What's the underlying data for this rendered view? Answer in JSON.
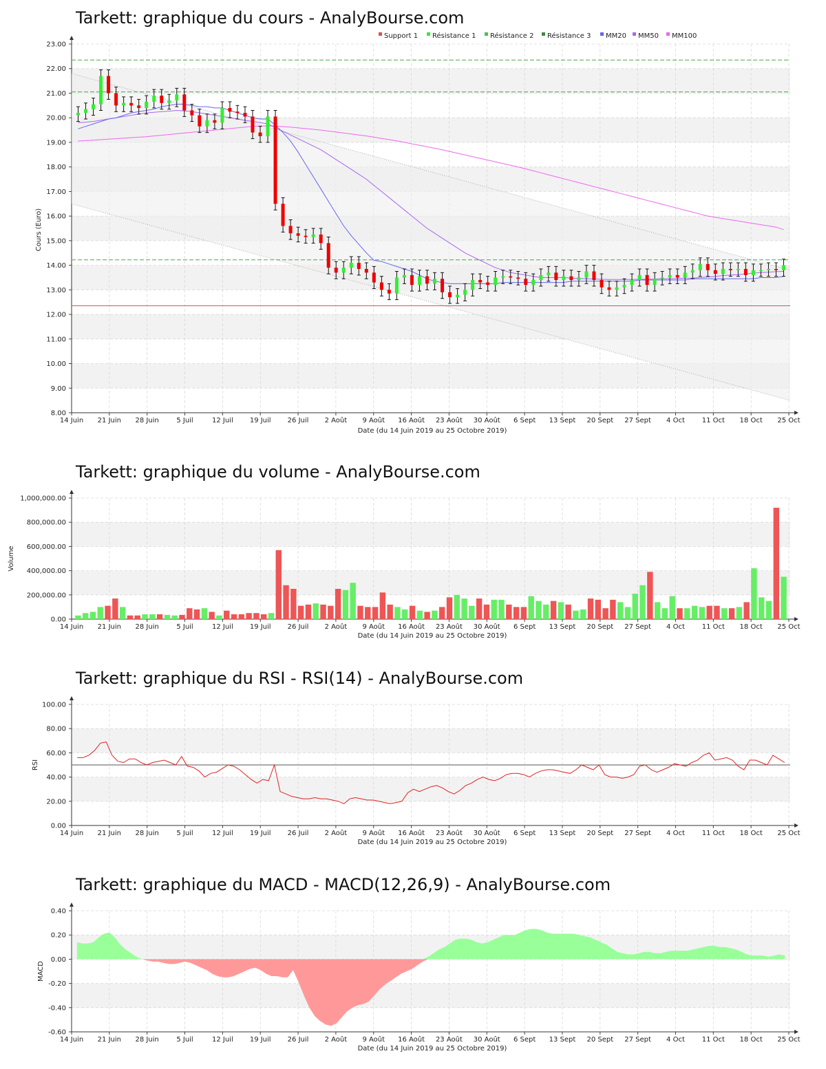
{
  "colors": {
    "up": "#33ee33",
    "down": "#ee0000",
    "wick": "#111111",
    "support": "#e05050",
    "resistance": "#44aa44",
    "mm20": "#6666ee",
    "mm50": "#aa66ee",
    "mm100": "#ee66ee",
    "band": "#f2f2f2",
    "grid": "#d8d8d8",
    "rsi": "#dd2222",
    "macd_pos": "#99ff99",
    "macd_neg": "#ff9999"
  },
  "x_ticks": [
    "14 Juin",
    "21 Juin",
    "28 Juin",
    "5 Juil",
    "12 Juil",
    "19 Juil",
    "26 Juil",
    "2 Août",
    "9 Août",
    "16 Août",
    "23 Août",
    "30 Août",
    "6 Sept",
    "13 Sept",
    "20 Sept",
    "27 Sept",
    "4 Oct",
    "11 Oct",
    "18 Oct",
    "25 Oct"
  ],
  "x_axis_label": "Date (du 14 Juin 2019 au 25 Octobre 2019)",
  "chart_data": [
    {
      "type": "candlestick",
      "title": "Tarkett: graphique du cours - AnalyBourse.com",
      "ylabel": "Cours (Euro)",
      "ylim": [
        8,
        23
      ],
      "y_ticks": [
        "8.00",
        "9.00",
        "10.00",
        "11.00",
        "12.00",
        "13.00",
        "14.00",
        "15.00",
        "16.00",
        "17.00",
        "18.00",
        "19.00",
        "20.00",
        "21.00",
        "22.00",
        "23.00"
      ],
      "legend": [
        "Support 1",
        "Résistance 1",
        "Résistance 2",
        "Résistance 3",
        "MM20",
        "MM50",
        "MM100"
      ],
      "levels": {
        "support_1": 12.35,
        "resistance_1": 14.22,
        "resistance_2": 21.05,
        "resistance_3": 22.35
      },
      "trend_channel": {
        "upper": [
          21.8,
          13.8
        ],
        "lower": [
          16.5,
          8.5
        ]
      },
      "close": [
        20.2,
        20.35,
        20.55,
        21.7,
        21.0,
        20.5,
        20.6,
        20.5,
        20.4,
        20.65,
        20.9,
        20.6,
        20.7,
        20.95,
        20.3,
        20.1,
        19.65,
        19.9,
        19.8,
        20.4,
        20.25,
        20.2,
        20.05,
        19.4,
        19.25,
        20.05,
        16.5,
        15.6,
        15.3,
        15.2,
        15.15,
        15.25,
        14.9,
        13.9,
        13.7,
        13.9,
        14.1,
        13.85,
        13.7,
        13.3,
        13.0,
        12.85,
        13.5,
        13.6,
        13.2,
        13.55,
        13.25,
        13.45,
        12.9,
        12.7,
        12.8,
        13.0,
        13.4,
        13.3,
        13.2,
        13.5,
        13.55,
        13.5,
        13.45,
        13.2,
        13.4,
        13.6,
        13.7,
        13.4,
        13.55,
        13.4,
        13.5,
        13.75,
        13.4,
        13.1,
        13.0,
        13.1,
        13.2,
        13.4,
        13.6,
        13.2,
        13.45,
        13.5,
        13.6,
        13.5,
        13.7,
        13.8,
        14.05,
        13.8,
        13.65,
        13.85,
        13.8,
        13.85,
        13.6,
        13.8,
        13.8,
        13.85,
        13.8,
        14.0
      ],
      "mm20": [
        19.55,
        19.65,
        19.75,
        19.85,
        19.95,
        20.0,
        20.1,
        20.2,
        20.25,
        20.3,
        20.35,
        20.45,
        20.5,
        20.55,
        20.55,
        20.5,
        20.45,
        20.45,
        20.4,
        20.4,
        20.3,
        20.2,
        20.1,
        20.0,
        19.95,
        19.95,
        19.7,
        19.4,
        19.05,
        18.6,
        18.1,
        17.6,
        17.1,
        16.6,
        16.1,
        15.6,
        15.2,
        14.85,
        14.5,
        14.2,
        14.15,
        14.05,
        13.95,
        13.85,
        13.75,
        13.6,
        13.45,
        13.35,
        13.3,
        13.25,
        13.25,
        13.25,
        13.25,
        13.25,
        13.25,
        13.25,
        13.3,
        13.3,
        13.3,
        13.3,
        13.3,
        13.3,
        13.3,
        13.3,
        13.3,
        13.35,
        13.35,
        13.35,
        13.35,
        13.35,
        13.35,
        13.35,
        13.35,
        13.35,
        13.4,
        13.4,
        13.4,
        13.4,
        13.4,
        13.4,
        13.4,
        13.45,
        13.45,
        13.45,
        13.45,
        13.45,
        13.45,
        13.45,
        13.45,
        13.45,
        13.5,
        13.5,
        13.5,
        13.55
      ],
      "mm50": [
        19.8,
        19.82,
        19.85,
        19.9,
        19.95,
        20.0,
        20.05,
        20.1,
        20.15,
        20.2,
        20.22,
        20.25,
        20.27,
        20.3,
        20.28,
        20.25,
        20.2,
        20.15,
        20.1,
        20.05,
        20.0,
        19.95,
        19.9,
        19.85,
        19.8,
        19.75,
        19.6,
        19.45,
        19.3,
        19.15,
        19.0,
        18.85,
        18.7,
        18.5,
        18.3,
        18.1,
        17.9,
        17.7,
        17.5,
        17.25,
        17.0,
        16.75,
        16.5,
        16.25,
        16.0,
        15.75,
        15.5,
        15.3,
        15.1,
        14.9,
        14.7,
        14.5,
        14.35,
        14.2,
        14.05,
        13.9,
        13.8,
        13.7,
        13.65,
        13.6,
        13.55,
        13.5,
        13.5,
        13.5,
        13.5,
        13.48,
        13.46,
        13.45,
        13.44,
        13.43,
        13.42,
        13.42,
        13.42,
        13.42,
        13.43,
        13.43,
        13.44,
        13.45,
        13.45,
        13.46,
        13.47,
        13.48,
        13.5,
        13.52,
        13.55,
        13.58,
        13.6,
        13.62,
        13.65,
        13.68,
        13.7,
        13.72,
        13.74,
        13.75
      ],
      "mm100": [
        19.05,
        19.07,
        19.09,
        19.11,
        19.13,
        19.15,
        19.17,
        19.19,
        19.21,
        19.23,
        19.26,
        19.29,
        19.32,
        19.35,
        19.38,
        19.41,
        19.44,
        19.47,
        19.5,
        19.53,
        19.56,
        19.59,
        19.62,
        19.65,
        19.66,
        19.67,
        19.66,
        19.64,
        19.62,
        19.59,
        19.56,
        19.53,
        19.5,
        19.46,
        19.42,
        19.38,
        19.34,
        19.3,
        19.26,
        19.21,
        19.16,
        19.11,
        19.06,
        19.0,
        18.94,
        18.88,
        18.82,
        18.76,
        18.7,
        18.63,
        18.56,
        18.49,
        18.42,
        18.35,
        18.28,
        18.21,
        18.14,
        18.07,
        18.0,
        17.92,
        17.84,
        17.76,
        17.68,
        17.6,
        17.52,
        17.44,
        17.36,
        17.28,
        17.2,
        17.12,
        17.04,
        16.96,
        16.88,
        16.8,
        16.72,
        16.64,
        16.56,
        16.48,
        16.4,
        16.32,
        16.24,
        16.16,
        16.08,
        16.0,
        15.95,
        15.9,
        15.85,
        15.8,
        15.75,
        15.7,
        15.65,
        15.6,
        15.55,
        15.45
      ]
    },
    {
      "type": "bar",
      "title": "Tarkett: graphique du volume - AnalyBourse.com",
      "ylabel": "Volume",
      "ylim": [
        0,
        1000000
      ],
      "y_ticks": [
        "0.00",
        "200,000.00",
        "400,000.00",
        "600,000.00",
        "800,000.00",
        "1,000,000.00"
      ],
      "values": [
        30000,
        50000,
        60000,
        100000,
        110000,
        170000,
        100000,
        30000,
        30000,
        40000,
        40000,
        40000,
        35000,
        30000,
        35000,
        90000,
        80000,
        90000,
        60000,
        30000,
        70000,
        40000,
        40000,
        50000,
        50000,
        40000,
        50000,
        570000,
        280000,
        250000,
        110000,
        120000,
        130000,
        120000,
        110000,
        250000,
        240000,
        300000,
        110000,
        100000,
        100000,
        220000,
        120000,
        100000,
        80000,
        110000,
        70000,
        60000,
        70000,
        100000,
        180000,
        200000,
        170000,
        110000,
        170000,
        120000,
        160000,
        160000,
        120000,
        100000,
        100000,
        190000,
        150000,
        120000,
        150000,
        140000,
        120000,
        70000,
        80000,
        170000,
        160000,
        90000,
        160000,
        140000,
        100000,
        210000,
        280000,
        390000,
        140000,
        90000,
        190000,
        90000,
        90000,
        110000,
        100000,
        110000,
        110000,
        90000,
        90000,
        100000,
        140000,
        420000,
        180000,
        150000,
        920000,
        350000
      ]
    },
    {
      "type": "line",
      "title": "Tarkett: graphique du RSI - RSI(14) - AnalyBourse.com",
      "ylabel": "RSI",
      "ylim": [
        0,
        100
      ],
      "y_ticks": [
        "0.00",
        "20.00",
        "40.00",
        "60.00",
        "80.00",
        "100.00"
      ],
      "reference": 50,
      "values": [
        56,
        56,
        58,
        62,
        68,
        69,
        58,
        53,
        52,
        55,
        55,
        52,
        50,
        52,
        53,
        54,
        52,
        50,
        57,
        49,
        48,
        45,
        40,
        43,
        44,
        47,
        50,
        49,
        46,
        42,
        38,
        35,
        38,
        37,
        50,
        28,
        26,
        24,
        23,
        22,
        22,
        23,
        22,
        22,
        21,
        20,
        18,
        22,
        23,
        22,
        21,
        21,
        20,
        19,
        18,
        19,
        20,
        27,
        30,
        28,
        30,
        32,
        33,
        31,
        28,
        26,
        29,
        33,
        35,
        38,
        40,
        38,
        37,
        39,
        42,
        43,
        43,
        42,
        40,
        43,
        45,
        46,
        46,
        45,
        44,
        43,
        46,
        50,
        48,
        46,
        50,
        42,
        40,
        40,
        39,
        40,
        42,
        49,
        50,
        46,
        44,
        46,
        48,
        51,
        50,
        49,
        52,
        54,
        58,
        60,
        54,
        55,
        56,
        54,
        49,
        46,
        54,
        54,
        52,
        50,
        58,
        55,
        52
      ]
    },
    {
      "type": "area",
      "title": "Tarkett: graphique du MACD - MACD(12,26,9) - AnalyBourse.com",
      "ylabel": "MACD",
      "ylim": [
        -0.6,
        0.4
      ],
      "y_ticks": [
        "-0.60",
        "-0.40",
        "-0.20",
        "0.00",
        "0.20",
        "0.40"
      ],
      "values": [
        0.14,
        0.13,
        0.13,
        0.14,
        0.18,
        0.21,
        0.22,
        0.18,
        0.12,
        0.08,
        0.05,
        0.02,
        0.0,
        -0.01,
        -0.02,
        -0.02,
        -0.03,
        -0.04,
        -0.04,
        -0.03,
        -0.02,
        -0.03,
        -0.05,
        -0.07,
        -0.09,
        -0.12,
        -0.14,
        -0.15,
        -0.15,
        -0.14,
        -0.12,
        -0.1,
        -0.08,
        -0.07,
        -0.09,
        -0.12,
        -0.14,
        -0.14,
        -0.15,
        -0.15,
        -0.09,
        -0.19,
        -0.3,
        -0.4,
        -0.47,
        -0.51,
        -0.54,
        -0.55,
        -0.53,
        -0.48,
        -0.43,
        -0.4,
        -0.38,
        -0.37,
        -0.35,
        -0.3,
        -0.25,
        -0.21,
        -0.18,
        -0.15,
        -0.12,
        -0.1,
        -0.08,
        -0.05,
        -0.02,
        0.02,
        0.05,
        0.08,
        0.1,
        0.13,
        0.16,
        0.17,
        0.17,
        0.16,
        0.14,
        0.13,
        0.14,
        0.16,
        0.18,
        0.2,
        0.2,
        0.2,
        0.22,
        0.24,
        0.25,
        0.25,
        0.24,
        0.22,
        0.21,
        0.21,
        0.21,
        0.21,
        0.21,
        0.2,
        0.19,
        0.18,
        0.16,
        0.14,
        0.12,
        0.09,
        0.06,
        0.05,
        0.04,
        0.04,
        0.05,
        0.06,
        0.06,
        0.05,
        0.05,
        0.06,
        0.07,
        0.07,
        0.07,
        0.07,
        0.08,
        0.09,
        0.1,
        0.11,
        0.11,
        0.1,
        0.1,
        0.09,
        0.08,
        0.06,
        0.04,
        0.03,
        0.03,
        0.03,
        0.02,
        0.03,
        0.04,
        0.03
      ]
    }
  ]
}
